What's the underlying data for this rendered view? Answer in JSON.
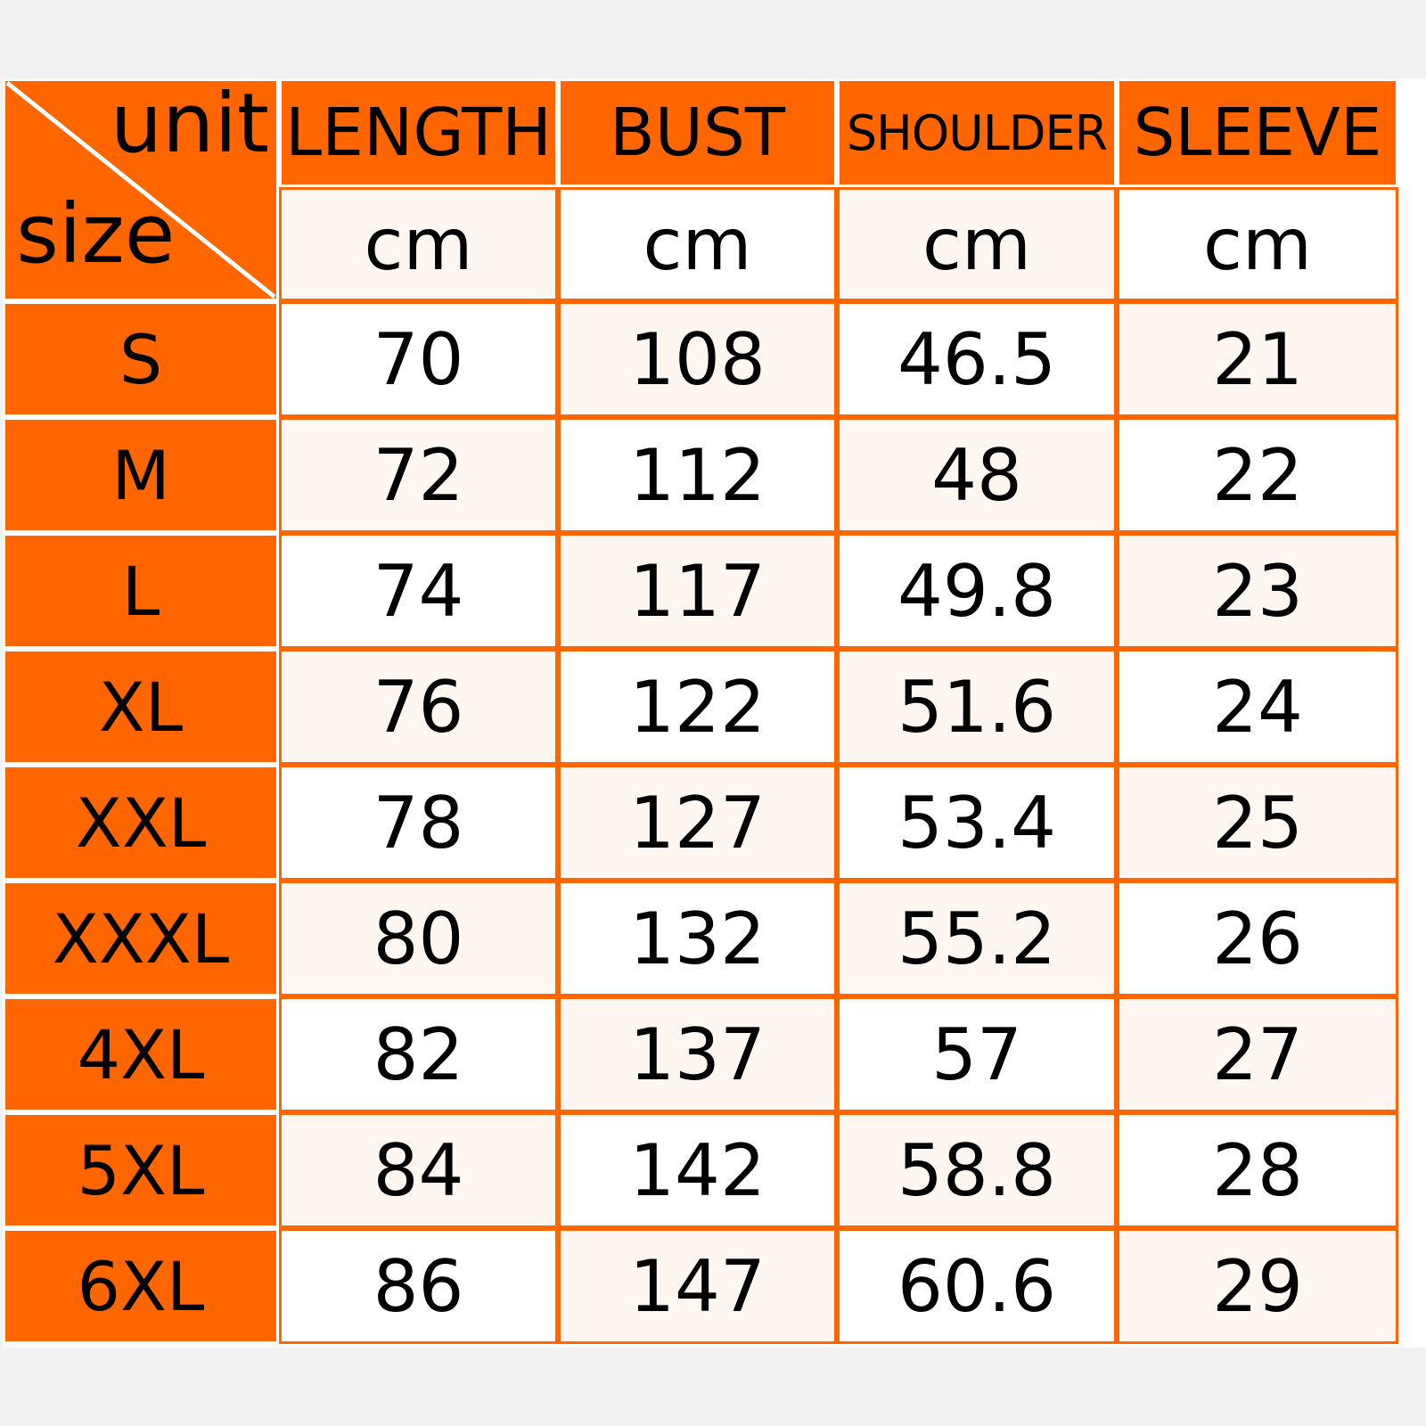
{
  "corner": {
    "unit_label": "unit",
    "size_label": "size"
  },
  "columns": [
    "LENGTH",
    "BUST",
    "SHOULDER",
    "SLEEVE"
  ],
  "units": [
    "cm",
    "cm",
    "cm",
    "cm"
  ],
  "rows": [
    {
      "size": "S",
      "values": [
        "70",
        "108",
        "46.5",
        "21"
      ]
    },
    {
      "size": "M",
      "values": [
        "72",
        "112",
        "48",
        "22"
      ]
    },
    {
      "size": "L",
      "values": [
        "74",
        "117",
        "49.8",
        "23"
      ]
    },
    {
      "size": "XL",
      "values": [
        "76",
        "122",
        "51.6",
        "24"
      ]
    },
    {
      "size": "XXL",
      "values": [
        "78",
        "127",
        "53.4",
        "25"
      ]
    },
    {
      "size": "XXXL",
      "values": [
        "80",
        "132",
        "55.2",
        "26"
      ]
    },
    {
      "size": "4XL",
      "values": [
        "82",
        "137",
        "57",
        "27"
      ]
    },
    {
      "size": "5XL",
      "values": [
        "84",
        "142",
        "58.8",
        "28"
      ]
    },
    {
      "size": "6XL",
      "values": [
        "86",
        "147",
        "60.6",
        "29"
      ]
    }
  ],
  "colors": {
    "accent": "#ff6600",
    "cream": "#fdf6f1",
    "background": "#f2f2f2"
  }
}
